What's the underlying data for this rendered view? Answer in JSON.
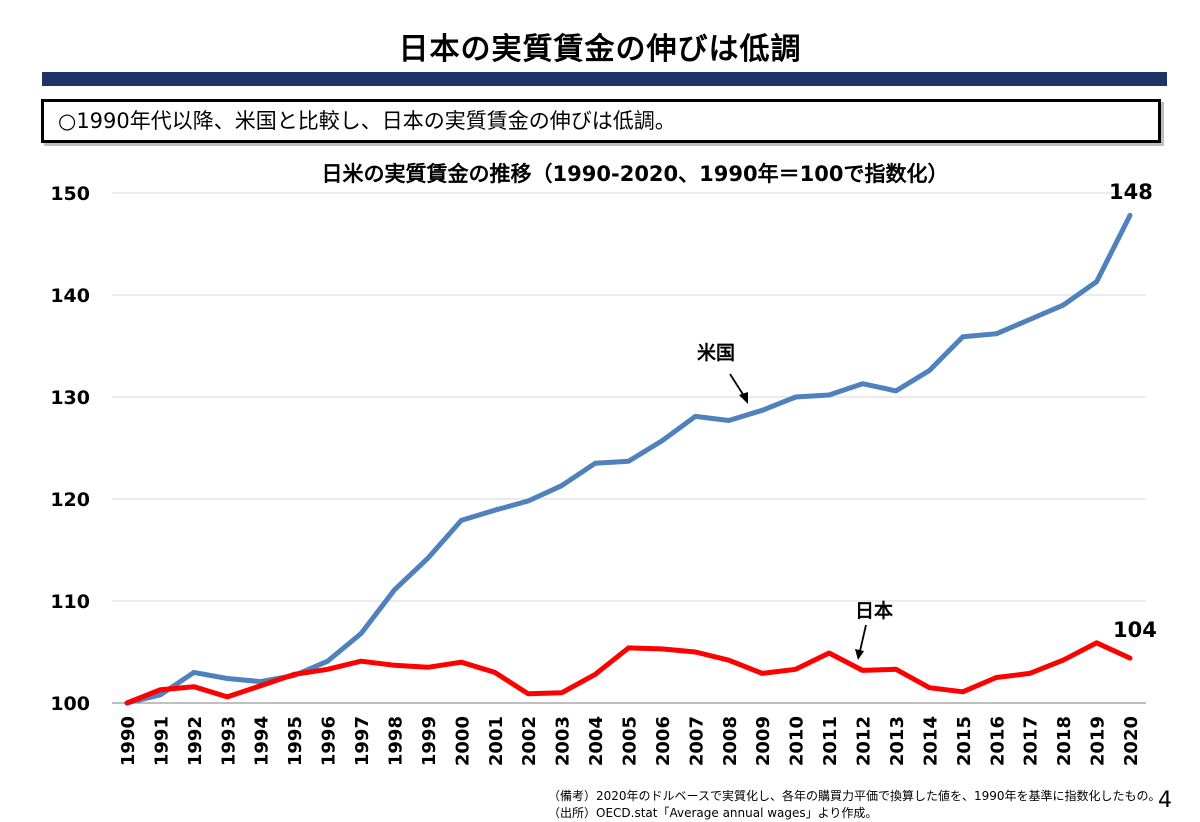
{
  "slide": {
    "title": "日本の実質賃金の伸びは低調",
    "summary": "○1990年代以降、米国と比較し、日本の実質賃金の伸びは低調。",
    "page_number": "4"
  },
  "notes": {
    "remarks": "（備考）2020年のドルベースで実質化し、各年の購買力平価で換算した値を、1990年を基準に指数化したもの。",
    "source": "（出所）OECD.stat「Average annual wages」より作成。"
  },
  "chart_data": {
    "type": "line",
    "title": "日米の実質賃金の推移（1990-2020、1990年＝100で指数化）",
    "xlabel": "",
    "ylabel": "",
    "ylim": [
      100,
      150
    ],
    "yticks": [
      100,
      110,
      120,
      130,
      140,
      150
    ],
    "grid": true,
    "x": [
      "1990",
      "1991",
      "1992",
      "1993",
      "1994",
      "1995",
      "1996",
      "1997",
      "1998",
      "1999",
      "2000",
      "2001",
      "2002",
      "2003",
      "2004",
      "2005",
      "2006",
      "2007",
      "2008",
      "2009",
      "2010",
      "2011",
      "2012",
      "2013",
      "2014",
      "2015",
      "2016",
      "2017",
      "2018",
      "2019",
      "2020"
    ],
    "series": [
      {
        "name": "米国",
        "color": "#4f81bd",
        "values": [
          100.0,
          100.8,
          103.0,
          102.4,
          102.1,
          102.7,
          104.1,
          106.8,
          111.1,
          114.2,
          117.9,
          118.9,
          119.8,
          121.3,
          123.5,
          123.7,
          125.7,
          128.1,
          127.7,
          128.7,
          130.0,
          130.2,
          131.3,
          130.6,
          132.6,
          135.9,
          136.2,
          137.6,
          139.0,
          141.3,
          147.8
        ]
      },
      {
        "name": "日本",
        "color": "#ff0000",
        "values": [
          100.0,
          101.3,
          101.6,
          100.6,
          101.7,
          102.8,
          103.3,
          104.1,
          103.7,
          103.5,
          104.0,
          103.0,
          100.9,
          101.0,
          102.8,
          105.4,
          105.3,
          105.0,
          104.2,
          102.9,
          103.3,
          104.9,
          103.2,
          103.3,
          101.5,
          101.1,
          102.5,
          102.9,
          104.2,
          105.9,
          104.4
        ]
      }
    ],
    "end_labels": {
      "us": "148",
      "japan": "104"
    }
  }
}
